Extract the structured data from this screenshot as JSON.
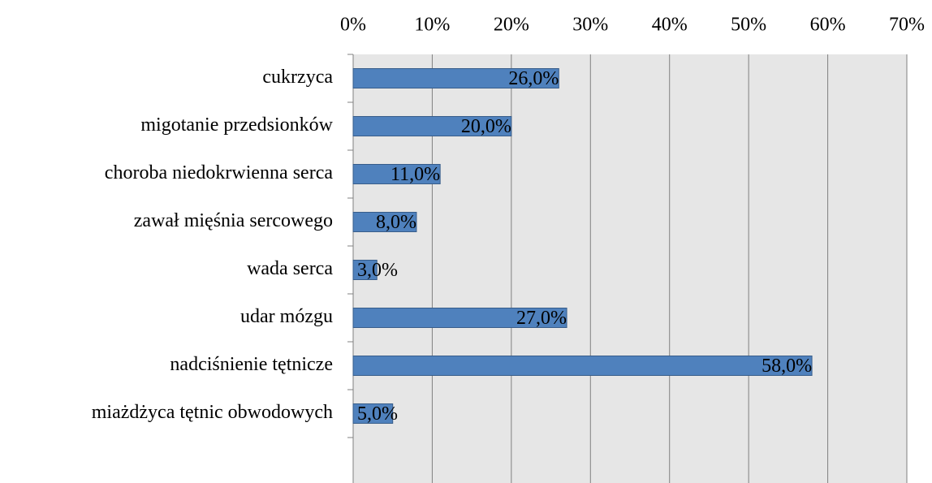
{
  "chart_data": {
    "type": "bar",
    "orientation": "horizontal",
    "categories": [
      "cukrzyca",
      "migotanie przedsionków",
      "choroba niedokrwienna serca",
      "zawał mięśnia sercowego",
      "wada serca",
      "udar mózgu",
      "nadciśnienie tętnicze",
      "miażdżyca tętnic obwodowych"
    ],
    "values": [
      26,
      20,
      11,
      8,
      3,
      27,
      58,
      5
    ],
    "value_labels": [
      "26,0%",
      "20,0%",
      "11,0%",
      "8,0%",
      "3,0%",
      "27,0%",
      "58,0%",
      "5,0%"
    ],
    "color": "#4f81bd",
    "xlim": [
      0,
      70
    ],
    "xticks": [
      {
        "value": 0,
        "label": "0%"
      },
      {
        "value": 10,
        "label": "10%"
      },
      {
        "value": 20,
        "label": "20%"
      },
      {
        "value": 30,
        "label": "30%"
      },
      {
        "value": 40,
        "label": "40%"
      },
      {
        "value": 50,
        "label": "50%"
      },
      {
        "value": 60,
        "label": "60%"
      },
      {
        "value": 70,
        "label": "70%"
      }
    ],
    "grid": true
  }
}
